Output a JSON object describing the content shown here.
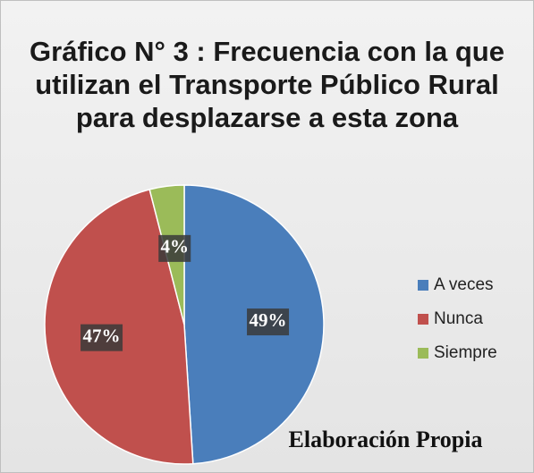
{
  "chart_data": {
    "type": "pie",
    "title": "Gráfico N° 3 : Frecuencia con la que utilizan el Transporte Público Rural para desplazarse a esta zona",
    "categories": [
      "A veces",
      "Nunca",
      "Siempre"
    ],
    "values": [
      49,
      47,
      4
    ],
    "value_labels": [
      "49%",
      "47%",
      "4%"
    ],
    "colors": [
      "#4a7ebb",
      "#c0504d",
      "#9bbb59"
    ],
    "legend": "right",
    "annotation": "Elaboración Propia"
  }
}
